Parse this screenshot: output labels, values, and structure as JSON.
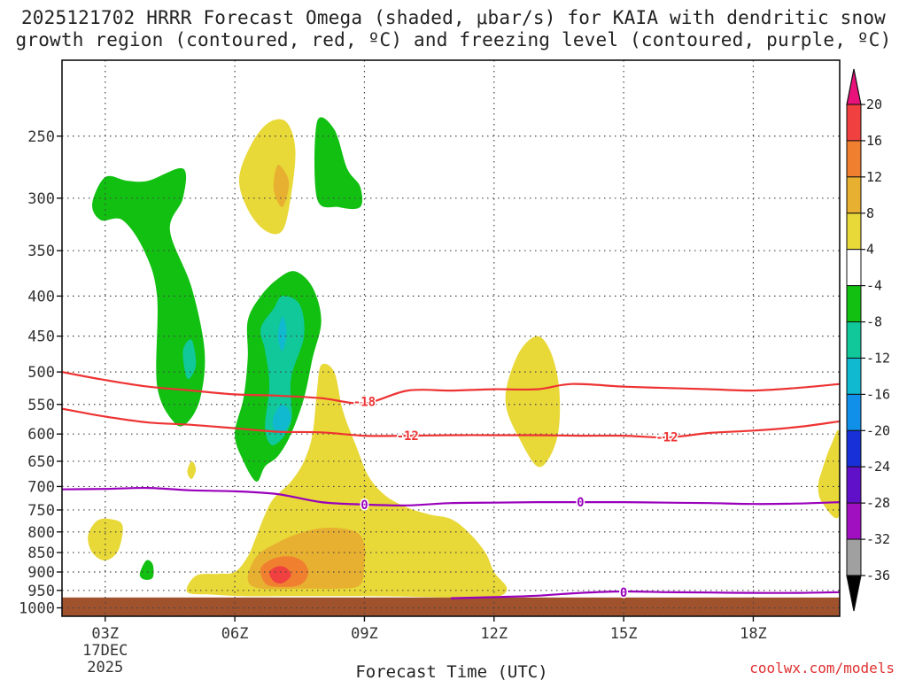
{
  "chart_data": {
    "type": "heatmap",
    "title": "2025121702 HRRR Forecast Omega (shaded, μbar/s) for KAIA with dendritic snow growth region (contoured, red, ºC) and freezing level (contoured, purple, ºC)",
    "title_lines": [
      "2025121702 HRRR Forecast Omega (shaded, μbar/s) for KAIA with dendritic snow",
      "growth region (contoured, red, ºC) and freezing level (contoured, purple, ºC)"
    ],
    "xlabel": "Forecast Time (UTC)",
    "ylabel": "",
    "x_range_hours": [
      2,
      20
    ],
    "y_range_hpa": [
      200,
      1025
    ],
    "y_scale": "log-pressure (inverted)",
    "grid": true,
    "x_ticks": [
      {
        "hour": 3,
        "label": "03Z"
      },
      {
        "hour": 6,
        "label": "06Z"
      },
      {
        "hour": 9,
        "label": "09Z"
      },
      {
        "hour": 12,
        "label": "12Z"
      },
      {
        "hour": 15,
        "label": "15Z"
      },
      {
        "hour": 18,
        "label": "18Z"
      }
    ],
    "date_label": [
      "17DEC",
      "2025"
    ],
    "y_ticks": [
      250,
      300,
      350,
      400,
      450,
      500,
      550,
      600,
      650,
      700,
      750,
      800,
      850,
      900,
      950,
      1000
    ],
    "ground_level_hpa": 970,
    "colorbar": {
      "units": "μbar/s",
      "levels": [
        20,
        16,
        12,
        8,
        4,
        -4,
        -8,
        -12,
        -16,
        -20,
        -24,
        -28,
        -32,
        -36
      ],
      "colors": [
        "#e8127a",
        "#f04040",
        "#f08030",
        "#e8b030",
        "#e8d838",
        "#ffffff",
        "#11c011",
        "#10c89a",
        "#10b8d0",
        "#1090e8",
        "#1830d8",
        "#6010c8",
        "#a010c0",
        "#a0a0a0",
        "#000000"
      ]
    },
    "contour_labels": [
      {
        "text": "-18",
        "color": "#ee3333",
        "hour": 9.0,
        "hpa": 545
      },
      {
        "text": "-12",
        "color": "#ee3333",
        "hour": 10.0,
        "hpa": 603
      },
      {
        "text": "-12",
        "color": "#ee3333",
        "hour": 16.0,
        "hpa": 605
      },
      {
        "text": "0",
        "color": "#9900bb",
        "hour": 9.0,
        "hpa": 738
      },
      {
        "text": "0",
        "color": "#9900bb",
        "hour": 14.0,
        "hpa": 733
      },
      {
        "text": "0",
        "color": "#9900bb",
        "hour": 15.0,
        "hpa": 955
      }
    ],
    "series": [
      {
        "name": "-18",
        "color": "#ee3333",
        "points": [
          [
            2,
            500
          ],
          [
            3,
            512
          ],
          [
            4,
            522
          ],
          [
            5,
            528
          ],
          [
            6,
            534
          ],
          [
            7,
            536
          ],
          [
            8,
            540
          ],
          [
            9,
            548
          ],
          [
            10,
            528
          ],
          [
            11,
            528
          ],
          [
            12,
            526
          ],
          [
            13,
            526
          ],
          [
            13.8,
            518
          ],
          [
            15,
            522
          ],
          [
            16,
            524
          ],
          [
            17,
            526
          ],
          [
            18,
            528
          ],
          [
            19,
            524
          ],
          [
            20,
            518
          ]
        ]
      },
      {
        "name": "-12",
        "color": "#ee3333",
        "points": [
          [
            2,
            557
          ],
          [
            3,
            570
          ],
          [
            4,
            580
          ],
          [
            5,
            584
          ],
          [
            6,
            590
          ],
          [
            7,
            596
          ],
          [
            8,
            597
          ],
          [
            9,
            603
          ],
          [
            10,
            603
          ],
          [
            11,
            602
          ],
          [
            12,
            602
          ],
          [
            13,
            602
          ],
          [
            14,
            603
          ],
          [
            15,
            603
          ],
          [
            16,
            606
          ],
          [
            17,
            598
          ],
          [
            18,
            594
          ],
          [
            19,
            588
          ],
          [
            20,
            578
          ]
        ]
      },
      {
        "name": "0",
        "color": "#9900bb",
        "points": [
          [
            2,
            706
          ],
          [
            3,
            705
          ],
          [
            4,
            703
          ],
          [
            5,
            708
          ],
          [
            6,
            710
          ],
          [
            7,
            716
          ],
          [
            8,
            733
          ],
          [
            9,
            738
          ],
          [
            10,
            740
          ],
          [
            11,
            735
          ],
          [
            12,
            734
          ],
          [
            13,
            733
          ],
          [
            14,
            733
          ],
          [
            15,
            733
          ],
          [
            16,
            734
          ],
          [
            17,
            735
          ],
          [
            18,
            737
          ],
          [
            19,
            736
          ],
          [
            20,
            733
          ]
        ]
      },
      {
        "name": "0",
        "color": "#9900bb",
        "points": [
          [
            11,
            972
          ],
          [
            12,
            969
          ],
          [
            13,
            965
          ],
          [
            14,
            957
          ],
          [
            15,
            953
          ],
          [
            16,
            955
          ],
          [
            17,
            956
          ],
          [
            18,
            957
          ],
          [
            19,
            957
          ],
          [
            20,
            955
          ]
        ]
      }
    ],
    "shaded_regions": [
      {
        "color": "#11c011",
        "points": [
          [
            2.7,
            305
          ],
          [
            3.0,
            282
          ],
          [
            3.5,
            285
          ],
          [
            4.0,
            285
          ],
          [
            4.8,
            275
          ],
          [
            4.8,
            300
          ],
          [
            4.5,
            330
          ],
          [
            5.0,
            390
          ],
          [
            5.3,
            470
          ],
          [
            5.2,
            540
          ],
          [
            4.9,
            580
          ],
          [
            4.6,
            580
          ],
          [
            4.2,
            520
          ],
          [
            4.2,
            400
          ],
          [
            3.9,
            350
          ],
          [
            3.4,
            320
          ],
          [
            2.9,
            320
          ]
        ]
      },
      {
        "color": "#e8d838",
        "points": [
          [
            6.1,
            283
          ],
          [
            6.4,
            255
          ],
          [
            6.8,
            240
          ],
          [
            7.2,
            240
          ],
          [
            7.4,
            260
          ],
          [
            7.3,
            298
          ],
          [
            7.1,
            330
          ],
          [
            6.7,
            330
          ],
          [
            6.3,
            310
          ]
        ]
      },
      {
        "color": "#e8b030",
        "points": [
          [
            7.0,
            272
          ],
          [
            7.25,
            286
          ],
          [
            7.1,
            308
          ],
          [
            6.9,
            292
          ]
        ]
      },
      {
        "color": "#11c011",
        "points": [
          [
            7.9,
            240
          ],
          [
            8.3,
            245
          ],
          [
            8.6,
            275
          ],
          [
            8.9,
            290
          ],
          [
            8.9,
            308
          ],
          [
            8.4,
            308
          ],
          [
            7.9,
            300
          ]
        ]
      },
      {
        "color": "#11c011",
        "points": [
          [
            6.3,
            430
          ],
          [
            6.6,
            400
          ],
          [
            7.0,
            380
          ],
          [
            7.4,
            372
          ],
          [
            7.8,
            390
          ],
          [
            8.0,
            430
          ],
          [
            7.8,
            480
          ],
          [
            7.6,
            540
          ],
          [
            7.3,
            600
          ],
          [
            7.0,
            640
          ],
          [
            6.7,
            660
          ],
          [
            6.5,
            690
          ],
          [
            6.2,
            650
          ],
          [
            6.0,
            600
          ],
          [
            6.2,
            540
          ],
          [
            6.3,
            480
          ]
        ]
      },
      {
        "color": "#10c89a",
        "points": [
          [
            6.6,
            440
          ],
          [
            6.9,
            415
          ],
          [
            7.1,
            400
          ],
          [
            7.5,
            410
          ],
          [
            7.6,
            450
          ],
          [
            7.3,
            510
          ],
          [
            7.3,
            580
          ],
          [
            6.9,
            620
          ],
          [
            6.7,
            590
          ],
          [
            6.8,
            520
          ],
          [
            6.7,
            470
          ]
        ]
      },
      {
        "color": "#10b8d0",
        "points": [
          [
            7.0,
            450
          ],
          [
            7.1,
            425
          ],
          [
            7.2,
            445
          ],
          [
            7.1,
            470
          ]
        ]
      },
      {
        "color": "#10b8d0",
        "points": [
          [
            6.9,
            570
          ],
          [
            7.1,
            550
          ],
          [
            7.3,
            570
          ],
          [
            7.1,
            600
          ],
          [
            6.9,
            590
          ]
        ]
      },
      {
        "color": "#10c89a",
        "points": [
          [
            4.8,
            470
          ],
          [
            5.0,
            455
          ],
          [
            5.1,
            490
          ],
          [
            4.9,
            510
          ]
        ]
      },
      {
        "color": "#e8d838",
        "points": [
          [
            6.7,
            760
          ],
          [
            6.9,
            725
          ],
          [
            7.3,
            690
          ],
          [
            7.6,
            650
          ],
          [
            7.8,
            600
          ],
          [
            7.9,
            530
          ],
          [
            8.0,
            490
          ],
          [
            8.3,
            500
          ],
          [
            8.5,
            560
          ],
          [
            8.8,
            620
          ],
          [
            9.1,
            680
          ],
          [
            9.5,
            720
          ],
          [
            10.0,
            745
          ],
          [
            10.5,
            760
          ],
          [
            11.0,
            770
          ],
          [
            11.4,
            800
          ],
          [
            11.8,
            850
          ],
          [
            12.0,
            900
          ],
          [
            12.3,
            945
          ],
          [
            12.0,
            970
          ],
          [
            11.0,
            970
          ],
          [
            9.8,
            967
          ],
          [
            8.4,
            966
          ],
          [
            7.2,
            966
          ],
          [
            6.2,
            966
          ],
          [
            5.5,
            962
          ],
          [
            4.9,
            955
          ],
          [
            5.1,
            910
          ],
          [
            5.6,
            905
          ],
          [
            6.0,
            900
          ],
          [
            6.3,
            860
          ],
          [
            6.5,
            810
          ]
        ]
      },
      {
        "color": "#e8b030",
        "points": [
          [
            6.5,
            860
          ],
          [
            7.0,
            825
          ],
          [
            7.6,
            800
          ],
          [
            8.2,
            790
          ],
          [
            8.8,
            800
          ],
          [
            9.0,
            830
          ],
          [
            9.0,
            880
          ],
          [
            8.9,
            935
          ],
          [
            8.4,
            945
          ],
          [
            7.6,
            945
          ],
          [
            6.6,
            945
          ],
          [
            6.3,
            920
          ]
        ]
      },
      {
        "color": "#f08030",
        "points": [
          [
            6.6,
            890
          ],
          [
            6.9,
            865
          ],
          [
            7.3,
            860
          ],
          [
            7.6,
            875
          ],
          [
            7.7,
            905
          ],
          [
            7.5,
            935
          ],
          [
            7.0,
            940
          ],
          [
            6.7,
            930
          ]
        ]
      },
      {
        "color": "#f04040",
        "points": [
          [
            6.8,
            900
          ],
          [
            7.0,
            885
          ],
          [
            7.2,
            890
          ],
          [
            7.3,
            910
          ],
          [
            7.1,
            930
          ],
          [
            6.9,
            925
          ]
        ]
      },
      {
        "color": "#e8d838",
        "points": [
          [
            12.3,
            520
          ],
          [
            12.6,
            470
          ],
          [
            13.0,
            450
          ],
          [
            13.3,
            470
          ],
          [
            13.5,
            520
          ],
          [
            13.5,
            590
          ],
          [
            13.3,
            640
          ],
          [
            13.0,
            660
          ],
          [
            12.6,
            610
          ],
          [
            12.3,
            560
          ]
        ]
      },
      {
        "color": "#e8d838",
        "points": [
          [
            19.6,
            665
          ],
          [
            19.8,
            620
          ],
          [
            20.0,
            600
          ],
          [
            20.0,
            760
          ],
          [
            19.6,
            735
          ],
          [
            19.5,
            700
          ]
        ]
      },
      {
        "color": "#e8d838",
        "points": [
          [
            2.6,
            810
          ],
          [
            2.8,
            775
          ],
          [
            3.1,
            770
          ],
          [
            3.4,
            785
          ],
          [
            3.3,
            845
          ],
          [
            3.0,
            870
          ],
          [
            2.7,
            850
          ]
        ]
      },
      {
        "color": "#11c011",
        "points": [
          [
            3.8,
            905
          ],
          [
            3.95,
            870
          ],
          [
            4.1,
            880
          ],
          [
            4.1,
            915
          ],
          [
            3.9,
            920
          ]
        ]
      },
      {
        "color": "#e8d838",
        "points": [
          [
            4.9,
            670
          ],
          [
            5.0,
            650
          ],
          [
            5.1,
            665
          ],
          [
            5.0,
            685
          ]
        ]
      }
    ]
  },
  "credit": "coolwx.com/models"
}
